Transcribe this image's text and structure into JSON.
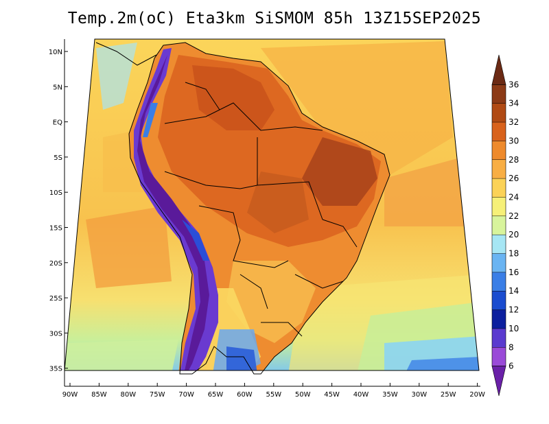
{
  "title": "Temp.2m(oC) Eta3km SiSMOM 85h 13Z15SEP2025",
  "map": {
    "lat_labels": [
      "10N",
      "5N",
      "EQ",
      "5S",
      "10S",
      "15S",
      "20S",
      "25S",
      "30S",
      "35S"
    ],
    "lon_labels": [
      "90W",
      "85W",
      "80W",
      "75W",
      "70W",
      "65W",
      "60W",
      "55W",
      "50W",
      "45W",
      "40W",
      "35W",
      "30W",
      "25W",
      "20W"
    ]
  },
  "colorbar": {
    "labels": [
      "36",
      "34",
      "32",
      "30",
      "28",
      "26",
      "24",
      "22",
      "20",
      "18",
      "16",
      "14",
      "12",
      "10",
      "8",
      "6"
    ],
    "colors": [
      "#6b2a14",
      "#8c3a16",
      "#b04a14",
      "#d8621c",
      "#ee8a2c",
      "#f8ae44",
      "#fbd257",
      "#f6f078",
      "#d8f49c",
      "#a6e6f4",
      "#6ab4f2",
      "#3a7ee6",
      "#1a4ccf",
      "#0c1f9e",
      "#5a3acf",
      "#9a4ad8",
      "#6a20a8"
    ]
  }
}
